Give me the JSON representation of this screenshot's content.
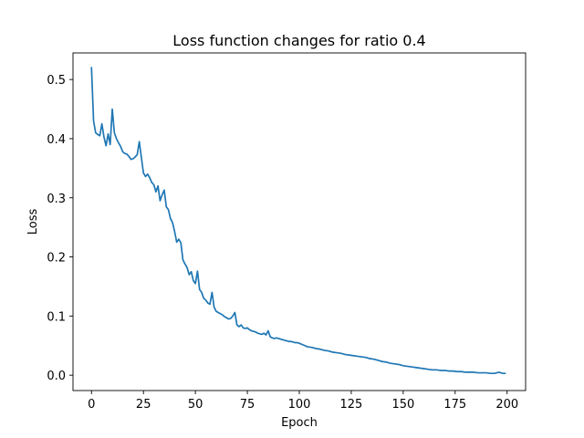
{
  "chart_data": {
    "type": "line",
    "title": "Loss function changes for ratio 0.4",
    "xlabel": "Epoch",
    "ylabel": "Loss",
    "xlim": [
      -8.9,
      208.9
    ],
    "ylim": [
      -0.026,
      0.545
    ],
    "xticks": [
      0,
      25,
      50,
      75,
      100,
      125,
      150,
      175,
      200
    ],
    "yticks": [
      0.0,
      0.1,
      0.2,
      0.3,
      0.4,
      0.5
    ],
    "xtick_labels": [
      "0",
      "25",
      "50",
      "75",
      "100",
      "125",
      "150",
      "175",
      "200"
    ],
    "ytick_labels": [
      "0.0",
      "0.1",
      "0.2",
      "0.3",
      "0.4",
      "0.5"
    ],
    "grid": false,
    "series": [
      {
        "color": "#1f77b4",
        "x": [
          0,
          1,
          2,
          3,
          4,
          5,
          6,
          7,
          8,
          9,
          10,
          11,
          12,
          13,
          14,
          15,
          16,
          17,
          18,
          19,
          20,
          21,
          22,
          23,
          24,
          25,
          26,
          27,
          28,
          29,
          30,
          31,
          32,
          33,
          34,
          35,
          36,
          37,
          38,
          39,
          40,
          41,
          42,
          43,
          44,
          45,
          46,
          47,
          48,
          49,
          50,
          51,
          52,
          53,
          54,
          55,
          56,
          57,
          58,
          59,
          60,
          61,
          62,
          63,
          64,
          65,
          66,
          67,
          68,
          69,
          70,
          71,
          72,
          73,
          74,
          75,
          76,
          77,
          78,
          79,
          80,
          81,
          82,
          83,
          84,
          85,
          86,
          87,
          88,
          89,
          90,
          91,
          92,
          93,
          94,
          95,
          96,
          97,
          98,
          99,
          100,
          102,
          104,
          106,
          108,
          110,
          112,
          114,
          116,
          118,
          120,
          122,
          124,
          126,
          128,
          130,
          132,
          134,
          136,
          138,
          140,
          142,
          144,
          146,
          148,
          150,
          152,
          154,
          156,
          158,
          160,
          162,
          164,
          166,
          168,
          170,
          172,
          174,
          176,
          178,
          180,
          182,
          184,
          186,
          188,
          190,
          192,
          194,
          196,
          198,
          199
        ],
        "y": [
          0.52,
          0.43,
          0.41,
          0.407,
          0.405,
          0.425,
          0.403,
          0.388,
          0.408,
          0.39,
          0.45,
          0.41,
          0.4,
          0.393,
          0.387,
          0.378,
          0.375,
          0.374,
          0.37,
          0.365,
          0.366,
          0.369,
          0.373,
          0.395,
          0.368,
          0.342,
          0.336,
          0.34,
          0.334,
          0.326,
          0.322,
          0.31,
          0.32,
          0.295,
          0.305,
          0.313,
          0.285,
          0.28,
          0.265,
          0.258,
          0.243,
          0.225,
          0.23,
          0.224,
          0.195,
          0.188,
          0.182,
          0.17,
          0.175,
          0.16,
          0.155,
          0.176,
          0.145,
          0.14,
          0.13,
          0.127,
          0.122,
          0.12,
          0.14,
          0.115,
          0.108,
          0.106,
          0.104,
          0.102,
          0.099,
          0.097,
          0.095,
          0.096,
          0.1,
          0.106,
          0.085,
          0.082,
          0.085,
          0.08,
          0.079,
          0.08,
          0.077,
          0.075,
          0.074,
          0.073,
          0.071,
          0.07,
          0.069,
          0.071,
          0.068,
          0.075,
          0.065,
          0.063,
          0.062,
          0.063,
          0.062,
          0.061,
          0.06,
          0.059,
          0.058,
          0.057,
          0.057,
          0.056,
          0.055,
          0.055,
          0.054,
          0.051,
          0.048,
          0.047,
          0.045,
          0.044,
          0.042,
          0.041,
          0.039,
          0.038,
          0.037,
          0.035,
          0.034,
          0.033,
          0.032,
          0.031,
          0.03,
          0.028,
          0.027,
          0.025,
          0.023,
          0.022,
          0.02,
          0.019,
          0.018,
          0.016,
          0.015,
          0.014,
          0.013,
          0.012,
          0.011,
          0.01,
          0.009,
          0.009,
          0.008,
          0.008,
          0.007,
          0.007,
          0.006,
          0.006,
          0.005,
          0.005,
          0.005,
          0.004,
          0.004,
          0.004,
          0.003,
          0.003,
          0.005,
          0.003,
          0.003
        ]
      }
    ]
  }
}
